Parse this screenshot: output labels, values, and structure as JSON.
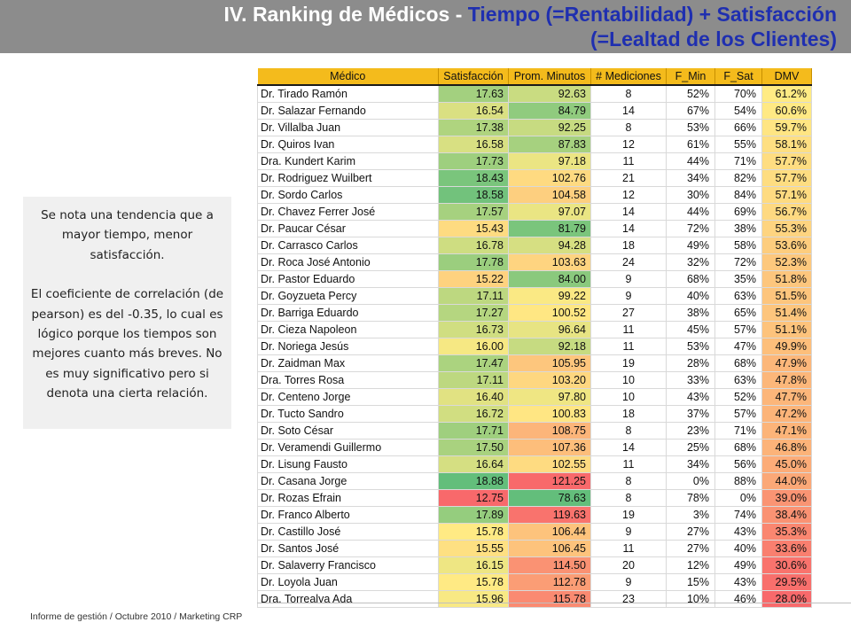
{
  "title": {
    "part1": "IV. Ranking de Médicos - ",
    "part2": "Tiempo (=Rentabilidad) + Satisfacción (=Lealtad de los Clientes)"
  },
  "note": {
    "para1": "Se nota una tendencia que a mayor tiempo, menor satisfacción.",
    "para2": "El coeficiente de correlación (de pearson) es del -0.35, lo cual es lógico porque los tiempos son mejores cuanto más breves. No es muy significativo pero si denota una cierta relación."
  },
  "footer": "Informe de gestión / Octubre 2010 / Marketing CRP",
  "table": {
    "headers": [
      "Médico",
      "Satisfacción",
      "Prom. Minutos",
      "# Mediciones",
      "F_Min",
      "F_Sat",
      "DMV"
    ],
    "rows": [
      [
        "Dr. Tirado Ramón",
        "17.63",
        "92.63",
        "8",
        "52%",
        "70%",
        "61.2%"
      ],
      [
        "Dr. Salazar Fernando",
        "16.54",
        "84.79",
        "14",
        "67%",
        "54%",
        "60.6%"
      ],
      [
        "Dr. Villalba Juan",
        "17.38",
        "92.25",
        "8",
        "53%",
        "66%",
        "59.7%"
      ],
      [
        "Dr. Quiros Ivan",
        "16.58",
        "87.83",
        "12",
        "61%",
        "55%",
        "58.1%"
      ],
      [
        "Dra. Kundert Karim",
        "17.73",
        "97.18",
        "11",
        "44%",
        "71%",
        "57.7%"
      ],
      [
        "Dr. Rodriguez Wuilbert",
        "18.43",
        "102.76",
        "21",
        "34%",
        "82%",
        "57.7%"
      ],
      [
        "Dr. Sordo Carlos",
        "18.58",
        "104.58",
        "12",
        "30%",
        "84%",
        "57.1%"
      ],
      [
        "Dr. Chavez Ferrer José",
        "17.57",
        "97.07",
        "14",
        "44%",
        "69%",
        "56.7%"
      ],
      [
        "Dr. Paucar César",
        "15.43",
        "81.79",
        "14",
        "72%",
        "38%",
        "55.3%"
      ],
      [
        "Dr. Carrasco Carlos",
        "16.78",
        "94.28",
        "18",
        "49%",
        "58%",
        "53.6%"
      ],
      [
        "Dr. Roca José Antonio",
        "17.78",
        "103.63",
        "24",
        "32%",
        "72%",
        "52.3%"
      ],
      [
        "Dr. Pastor Eduardo",
        "15.22",
        "84.00",
        "9",
        "68%",
        "35%",
        "51.8%"
      ],
      [
        "Dr. Goyzueta Percy",
        "17.11",
        "99.22",
        "9",
        "40%",
        "63%",
        "51.5%"
      ],
      [
        "Dr. Barriga Eduardo",
        "17.27",
        "100.52",
        "27",
        "38%",
        "65%",
        "51.4%"
      ],
      [
        "Dr. Cieza Napoleon",
        "16.73",
        "96.64",
        "11",
        "45%",
        "57%",
        "51.1%"
      ],
      [
        "Dr. Noriega Jesús",
        "16.00",
        "92.18",
        "11",
        "53%",
        "47%",
        "49.9%"
      ],
      [
        "Dr. Zaidman Max",
        "17.47",
        "105.95",
        "19",
        "28%",
        "68%",
        "47.9%"
      ],
      [
        "Dra. Torres Rosa",
        "17.11",
        "103.20",
        "10",
        "33%",
        "63%",
        "47.8%"
      ],
      [
        "Dr. Centeno Jorge",
        "16.40",
        "97.80",
        "10",
        "43%",
        "52%",
        "47.7%"
      ],
      [
        "Dr. Tucto Sandro",
        "16.72",
        "100.83",
        "18",
        "37%",
        "57%",
        "47.2%"
      ],
      [
        "Dr. Soto César",
        "17.71",
        "108.75",
        "8",
        "23%",
        "71%",
        "47.1%"
      ],
      [
        "Dr. Veramendi Guillermo",
        "17.50",
        "107.36",
        "14",
        "25%",
        "68%",
        "46.8%"
      ],
      [
        "Dr. Lisung Fausto",
        "16.64",
        "102.55",
        "11",
        "34%",
        "56%",
        "45.0%"
      ],
      [
        "Dr. Casana Jorge",
        "18.88",
        "121.25",
        "8",
        "0%",
        "88%",
        "44.0%"
      ],
      [
        "Dr. Rozas Efrain",
        "12.75",
        "78.63",
        "8",
        "78%",
        "0%",
        "39.0%"
      ],
      [
        "Dr. Franco Alberto",
        "17.89",
        "119.63",
        "19",
        "3%",
        "74%",
        "38.4%"
      ],
      [
        "Dr. Castillo José",
        "15.78",
        "106.44",
        "9",
        "27%",
        "43%",
        "35.3%"
      ],
      [
        "Dr. Santos José",
        "15.55",
        "106.45",
        "11",
        "27%",
        "40%",
        "33.6%"
      ],
      [
        "Dr. Salaverry Francisco",
        "16.15",
        "114.50",
        "20",
        "12%",
        "49%",
        "30.6%"
      ],
      [
        "Dr. Loyola Juan",
        "15.78",
        "112.78",
        "9",
        "15%",
        "43%",
        "29.5%"
      ],
      [
        "Dra. Torrealva Ada",
        "15.96",
        "115.78",
        "23",
        "10%",
        "46%",
        "28.0%"
      ]
    ]
  },
  "colors": {
    "header_bg": "#f4bb1c",
    "scale_low": "#f8696b",
    "scale_mid": "#ffeb84",
    "scale_high": "#63be7b"
  }
}
